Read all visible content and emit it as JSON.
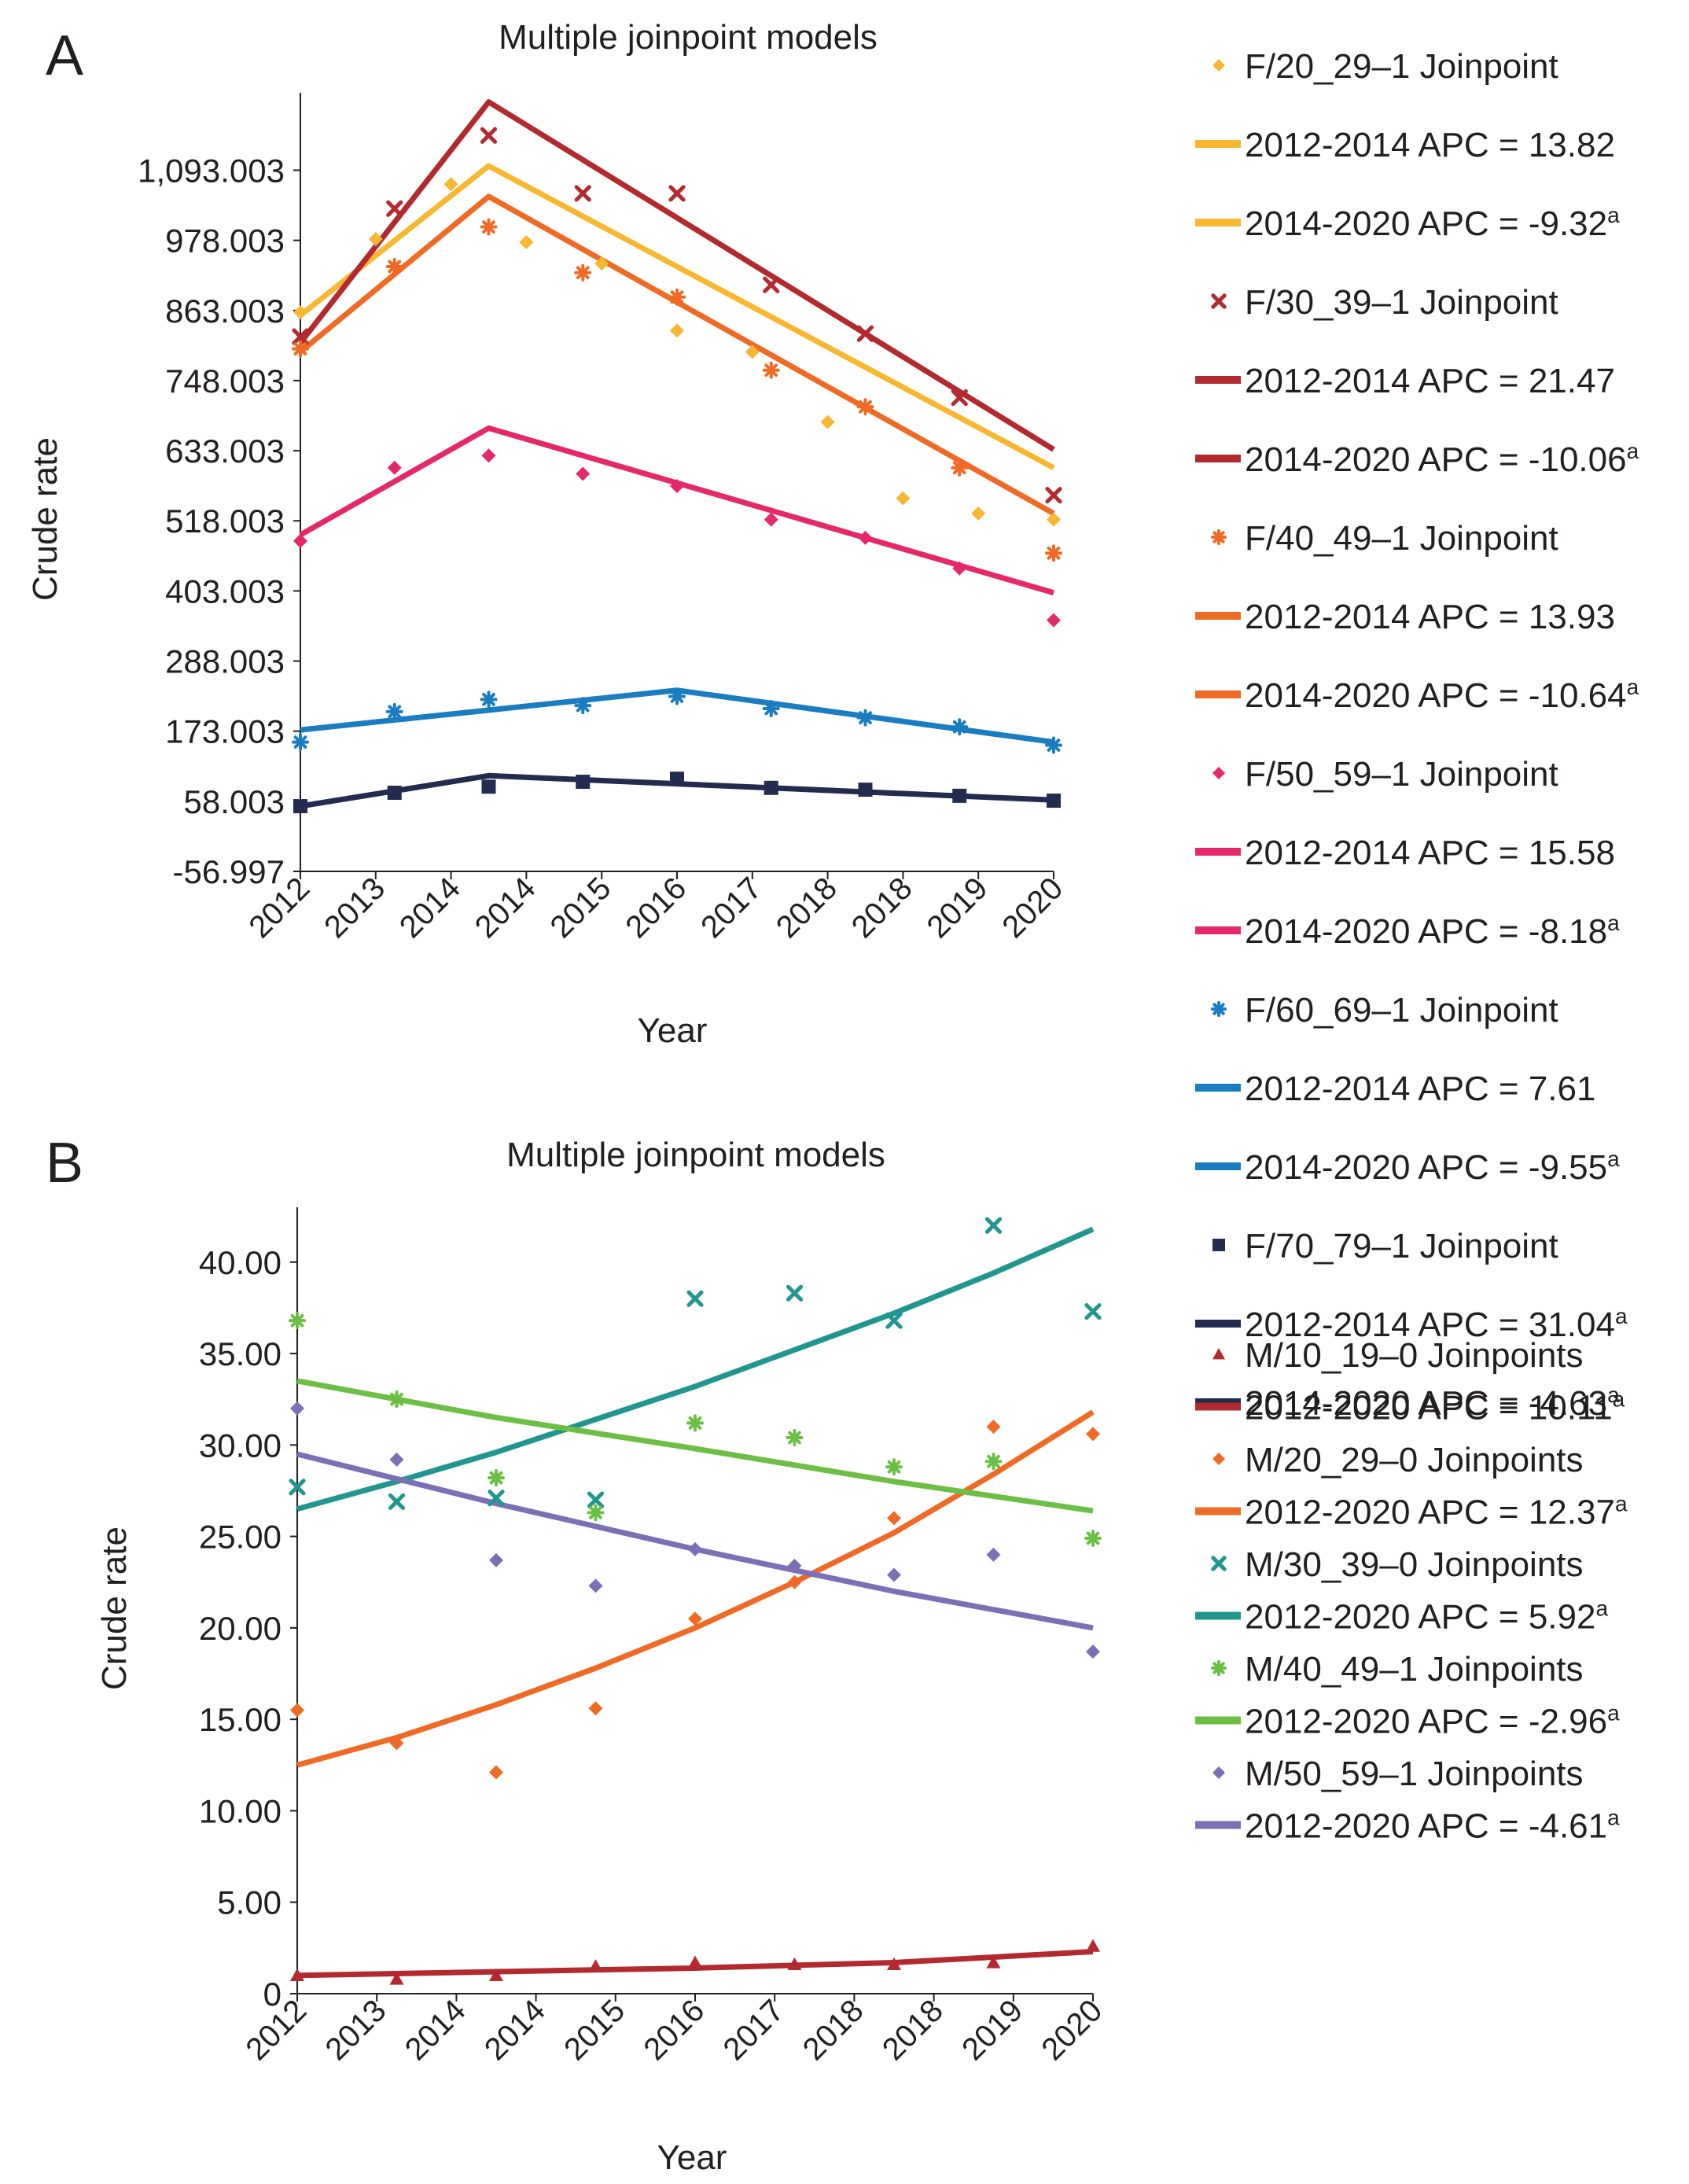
{
  "chart_data": [
    {
      "panel_label": "A",
      "type": "line",
      "title": "Multiple joinpoint models",
      "xlabel": "Year",
      "ylabel": "Crude rate",
      "x_tick_labels": [
        "2012",
        "2013",
        "2014",
        "2014",
        "2015",
        "2016",
        "2017",
        "2018",
        "2018",
        "2019",
        "2020"
      ],
      "y_tick_labels": [
        "-56.997",
        "58.003",
        "173.003",
        "288.003",
        "403.003",
        "518.003",
        "633.003",
        "748.003",
        "863.003",
        "978.003",
        "1,093.003"
      ],
      "ylim": [
        -56.997,
        1220
      ],
      "xlim": [
        2012,
        2020
      ],
      "grid": false,
      "legend_position": "right",
      "series": [
        {
          "name": "F/20_29–1 Joinpoint",
          "color": "#f7b731",
          "marker": "diamond",
          "x": [
            2012,
            2012.8,
            2013.6,
            2014.4,
            2015.2,
            2016.0,
            2016.8,
            2017.6,
            2018.4,
            2019.2,
            2020
          ],
          "points": [
            860,
            980,
            1070,
            975,
            940,
            830,
            795,
            680,
            555,
            530,
            520
          ],
          "fit_x": [
            2012,
            2014,
            2020
          ],
          "fit": [
            855,
            1100,
            605
          ],
          "fit_labels": [
            {
              "period": "2012-2014",
              "apc": "13.82",
              "sup": ""
            },
            {
              "period": "2014-2020",
              "apc": "-9.32",
              "sup": "a"
            }
          ]
        },
        {
          "name": "F/30_39–1 Joinpoint",
          "color": "#b22a2e",
          "marker": "x",
          "x": [
            2012,
            2013,
            2014,
            2015,
            2016,
            2017,
            2018,
            2019,
            2020
          ],
          "points": [
            820,
            1030,
            1150,
            1055,
            1055,
            905,
            825,
            720,
            560
          ],
          "fit_x": [
            2012,
            2014,
            2020
          ],
          "fit": [
            810,
            1205,
            635
          ],
          "fit_labels": [
            {
              "period": "2012-2014",
              "apc": "21.47",
              "sup": ""
            },
            {
              "period": "2014-2020",
              "apc": "-10.06",
              "sup": "a"
            }
          ]
        },
        {
          "name": "F/40_49–1 Joinpoint",
          "color": "#ef6a25",
          "marker": "asterisk",
          "x": [
            2012,
            2013,
            2014,
            2015,
            2016,
            2017,
            2018,
            2019,
            2020
          ],
          "points": [
            800,
            935,
            1000,
            925,
            885,
            765,
            705,
            605,
            465
          ],
          "fit_x": [
            2012,
            2014,
            2020
          ],
          "fit": [
            795,
            1050,
            530
          ],
          "fit_labels": [
            {
              "period": "2012-2014",
              "apc": "13.93",
              "sup": ""
            },
            {
              "period": "2014-2020",
              "apc": "-10.64",
              "sup": "a"
            }
          ]
        },
        {
          "name": "F/50_59–1 Joinpoint",
          "color": "#e5286a",
          "marker": "diamond",
          "x": [
            2012,
            2013,
            2014,
            2015,
            2016,
            2017,
            2018,
            2019,
            2020
          ],
          "points": [
            485,
            605,
            625,
            595,
            575,
            520,
            490,
            440,
            355
          ],
          "fit_x": [
            2012,
            2014,
            2020
          ],
          "fit": [
            495,
            670,
            400
          ],
          "fit_labels": [
            {
              "period": "2012-2014",
              "apc": "15.58",
              "sup": ""
            },
            {
              "period": "2014-2020",
              "apc": "-8.18",
              "sup": "a"
            }
          ]
        },
        {
          "name": "F/60_69–1 Joinpoint",
          "color": "#1a7dc0",
          "marker": "asterisk",
          "x": [
            2012,
            2013,
            2014,
            2015,
            2016,
            2017,
            2018,
            2019,
            2020
          ],
          "points": [
            155,
            205,
            225,
            215,
            230,
            210,
            195,
            180,
            150
          ],
          "fit_x": [
            2012,
            2016,
            2020
          ],
          "fit": [
            175,
            240,
            155
          ],
          "fit_labels": [
            {
              "period": "2012-2014",
              "apc": "7.61",
              "sup": ""
            },
            {
              "period": "2014-2020",
              "apc": "-9.55",
              "sup": "a"
            }
          ]
        },
        {
          "name": "F/70_79–1 Joinpoint",
          "color": "#232b4f",
          "marker": "square",
          "x": [
            2012,
            2013,
            2014,
            2015,
            2016,
            2017,
            2018,
            2019,
            2020
          ],
          "points": [
            50,
            72,
            82,
            90,
            95,
            80,
            77,
            67,
            59
          ],
          "fit_x": [
            2012,
            2014,
            2020
          ],
          "fit": [
            50,
            100,
            60
          ],
          "fit_labels": [
            {
              "period": "2012-2014",
              "apc": "31.04",
              "sup": "a"
            },
            {
              "period": "2014-2020",
              "apc": "-4.63",
              "sup": "a"
            }
          ]
        }
      ]
    },
    {
      "panel_label": "B",
      "type": "line",
      "title": "Multiple joinpoint models",
      "xlabel": "Year",
      "ylabel": "Crude rate",
      "x_tick_labels": [
        "2012",
        "2013",
        "2014",
        "2014",
        "2015",
        "2016",
        "2017",
        "2018",
        "2018",
        "2019",
        "2020"
      ],
      "y_tick_labels": [
        "0",
        "5.00",
        "10.00",
        "15.00",
        "20.00",
        "25.00",
        "30.00",
        "35.00",
        "40.00"
      ],
      "ylim": [
        0,
        43
      ],
      "xlim": [
        2012,
        2020
      ],
      "grid": false,
      "legend_position": "right",
      "series": [
        {
          "name": "M/10_19–0 Joinpoints",
          "color": "#b22a2e",
          "marker": "triangle",
          "x": [
            2012,
            2013,
            2014,
            2015,
            2016,
            2017,
            2018,
            2019,
            2020
          ],
          "points": [
            1.0,
            0.8,
            1.0,
            1.5,
            1.7,
            1.6,
            1.6,
            1.7,
            2.6
          ],
          "fit_x": [
            2012,
            2014,
            2016,
            2018,
            2020
          ],
          "fit": [
            1.0,
            1.2,
            1.4,
            1.7,
            2.3
          ],
          "fit_labels": [
            {
              "period": "2012-2020",
              "apc": "10.11",
              "sup": "a"
            }
          ]
        },
        {
          "name": "M/20_29–0 Joinpoints",
          "color": "#ef6a25",
          "marker": "diamond",
          "x": [
            2012,
            2013,
            2014,
            2015,
            2016,
            2017,
            2018,
            2019,
            2020
          ],
          "points": [
            15.5,
            13.7,
            12.1,
            15.6,
            20.5,
            22.5,
            26.0,
            31.0,
            30.6
          ],
          "fit_x": [
            2012,
            2013,
            2014,
            2015,
            2016,
            2017,
            2018,
            2019,
            2020
          ],
          "fit": [
            12.5,
            14.0,
            15.8,
            17.8,
            20.0,
            22.5,
            25.2,
            28.4,
            31.8
          ],
          "fit_labels": [
            {
              "period": "2012-2020",
              "apc": "12.37",
              "sup": "a"
            }
          ]
        },
        {
          "name": "M/30_39–0 Joinpoints",
          "color": "#21968f",
          "marker": "x",
          "x": [
            2012,
            2013,
            2014,
            2015,
            2016,
            2017,
            2018,
            2019,
            2020
          ],
          "points": [
            27.7,
            26.9,
            27.1,
            27.0,
            38.0,
            38.3,
            36.8,
            42.0,
            37.3
          ],
          "fit_x": [
            2012,
            2013,
            2014,
            2015,
            2016,
            2017,
            2018,
            2019,
            2020
          ],
          "fit": [
            26.5,
            28.0,
            29.6,
            31.4,
            33.2,
            35.2,
            37.2,
            39.4,
            41.8
          ],
          "fit_labels": [
            {
              "period": "2012-2020",
              "apc": "5.92",
              "sup": "a"
            }
          ]
        },
        {
          "name": "M/40_49–1 Joinpoints",
          "color": "#6cbf45",
          "marker": "asterisk",
          "x": [
            2012,
            2013,
            2014,
            2015,
            2016,
            2017,
            2018,
            2019,
            2020
          ],
          "points": [
            36.8,
            32.5,
            28.2,
            26.3,
            31.2,
            30.4,
            28.8,
            29.1,
            24.9
          ],
          "fit_x": [
            2012,
            2014,
            2016,
            2018,
            2020
          ],
          "fit": [
            33.5,
            31.5,
            29.8,
            28.0,
            26.4
          ],
          "fit_labels": [
            {
              "period": "2012-2020",
              "apc": "-2.96",
              "sup": "a"
            }
          ]
        },
        {
          "name": "M/50_59–1 Joinpoints",
          "color": "#7b6fb6",
          "marker": "diamond",
          "x": [
            2012,
            2013,
            2014,
            2015,
            2016,
            2017,
            2018,
            2019,
            2020
          ],
          "points": [
            32.0,
            29.2,
            23.7,
            22.3,
            24.3,
            23.4,
            22.9,
            24.0,
            18.7
          ],
          "fit_x": [
            2012,
            2014,
            2016,
            2018,
            2020
          ],
          "fit": [
            29.5,
            26.8,
            24.3,
            22.0,
            20.0
          ],
          "fit_labels": [
            {
              "period": "2012-2020",
              "apc": "-4.61",
              "sup": "a"
            }
          ]
        }
      ]
    }
  ]
}
